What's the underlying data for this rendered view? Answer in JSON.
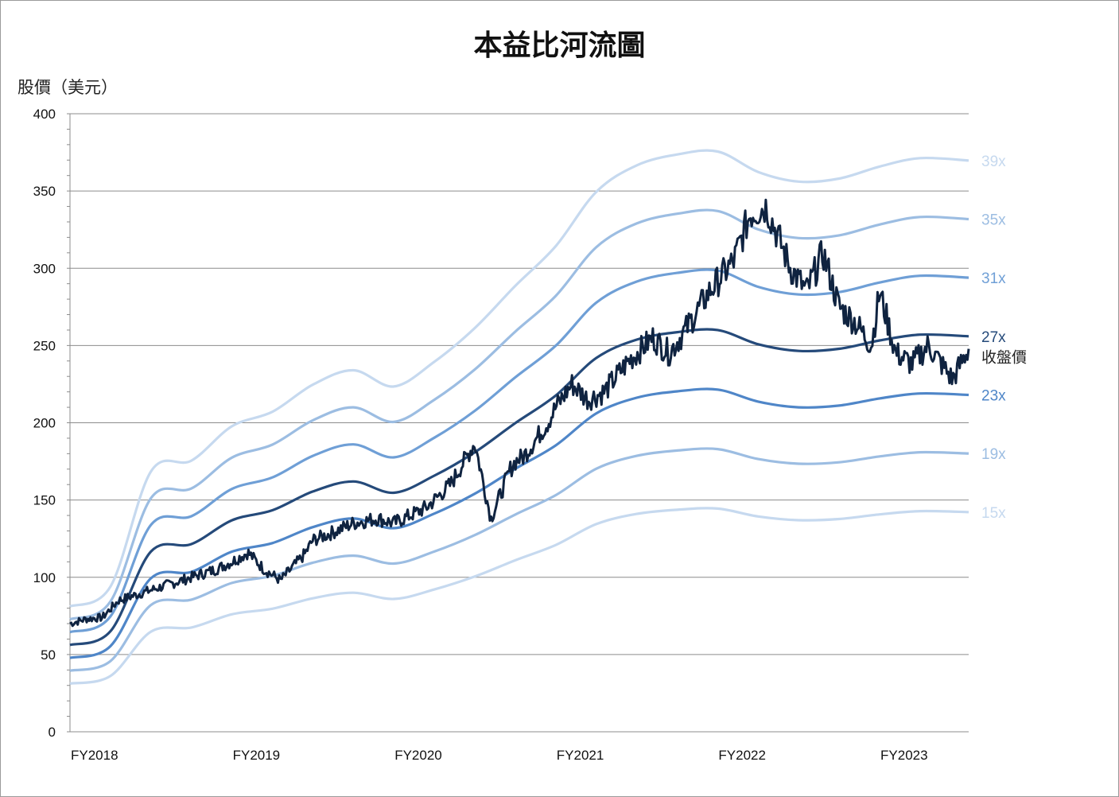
{
  "chart_data": {
    "type": "line",
    "title": "本益比河流圖",
    "ylabel": "股價（美元）",
    "xlabel": "",
    "ylim": [
      0,
      400
    ],
    "yticks": [
      0,
      50,
      100,
      150,
      200,
      250,
      300,
      350,
      400
    ],
    "xlim": [
      0,
      5.55
    ],
    "xticks": [
      {
        "x": 0,
        "label": "FY2018"
      },
      {
        "x": 1,
        "label": "FY2019"
      },
      {
        "x": 2,
        "label": "FY2020"
      },
      {
        "x": 3,
        "label": "FY2021"
      },
      {
        "x": 4,
        "label": "FY2022"
      },
      {
        "x": 5,
        "label": "FY2023"
      }
    ],
    "grid": true,
    "eps_x": [
      0,
      0.25,
      0.5,
      0.75,
      1.0,
      1.25,
      1.5,
      1.75,
      2.0,
      2.25,
      2.5,
      2.75,
      3.0,
      3.25,
      3.5,
      3.75,
      4.0,
      4.25,
      4.5,
      4.75,
      5.0,
      5.25,
      5.55
    ],
    "eps": [
      2.08,
      2.41,
      4.32,
      4.5,
      5.07,
      5.31,
      5.76,
      6.0,
      5.73,
      6.14,
      6.7,
      7.4,
      8.06,
      8.96,
      9.4,
      9.58,
      9.63,
      9.29,
      9.13,
      9.18,
      9.38,
      9.52,
      9.48
    ],
    "bands": [
      {
        "name": "39x",
        "multiple": 39,
        "color": "#c6d9ef"
      },
      {
        "name": "35x",
        "multiple": 35,
        "color": "#9cbde2"
      },
      {
        "name": "31x",
        "multiple": 31,
        "color": "#6f9fd6"
      },
      {
        "name": "27x",
        "multiple": 27,
        "color": "#254a7a"
      },
      {
        "name": "23x",
        "multiple": 23,
        "color": "#4f86c8"
      },
      {
        "name": "19x",
        "multiple": 19,
        "color": "#9cbde2"
      },
      {
        "name": "15x",
        "multiple": 15,
        "color": "#c6d9ef"
      }
    ],
    "price": {
      "name": "收盤價",
      "color": "#0f2340",
      "x": [
        0,
        0.1,
        0.2,
        0.3,
        0.45,
        0.6,
        0.75,
        0.9,
        1.0,
        1.1,
        1.2,
        1.3,
        1.45,
        1.5,
        1.6,
        1.75,
        1.9,
        2.0,
        2.1,
        2.2,
        2.35,
        2.5,
        2.6,
        2.72,
        2.75,
        2.8,
        2.95,
        3.0,
        3.1,
        3.2,
        3.3,
        3.45,
        3.6,
        3.7,
        3.8,
        3.95,
        4.1,
        4.2,
        4.3,
        4.45,
        4.55,
        4.65,
        4.75,
        4.85,
        4.95,
        5.0,
        5.1,
        5.2,
        5.3,
        5.45,
        5.55
      ],
      "y": [
        70,
        73,
        74,
        85,
        90,
        95,
        100,
        105,
        110,
        116,
        105,
        98,
        115,
        124,
        128,
        135,
        138,
        135,
        140,
        145,
        160,
        187,
        138,
        170,
        175,
        178,
        200,
        210,
        225,
        215,
        220,
        240,
        255,
        245,
        260,
        285,
        305,
        335,
        340,
        300,
        285,
        310,
        275,
        265,
        250,
        285,
        245,
        238,
        250,
        228,
        248
      ]
    }
  }
}
